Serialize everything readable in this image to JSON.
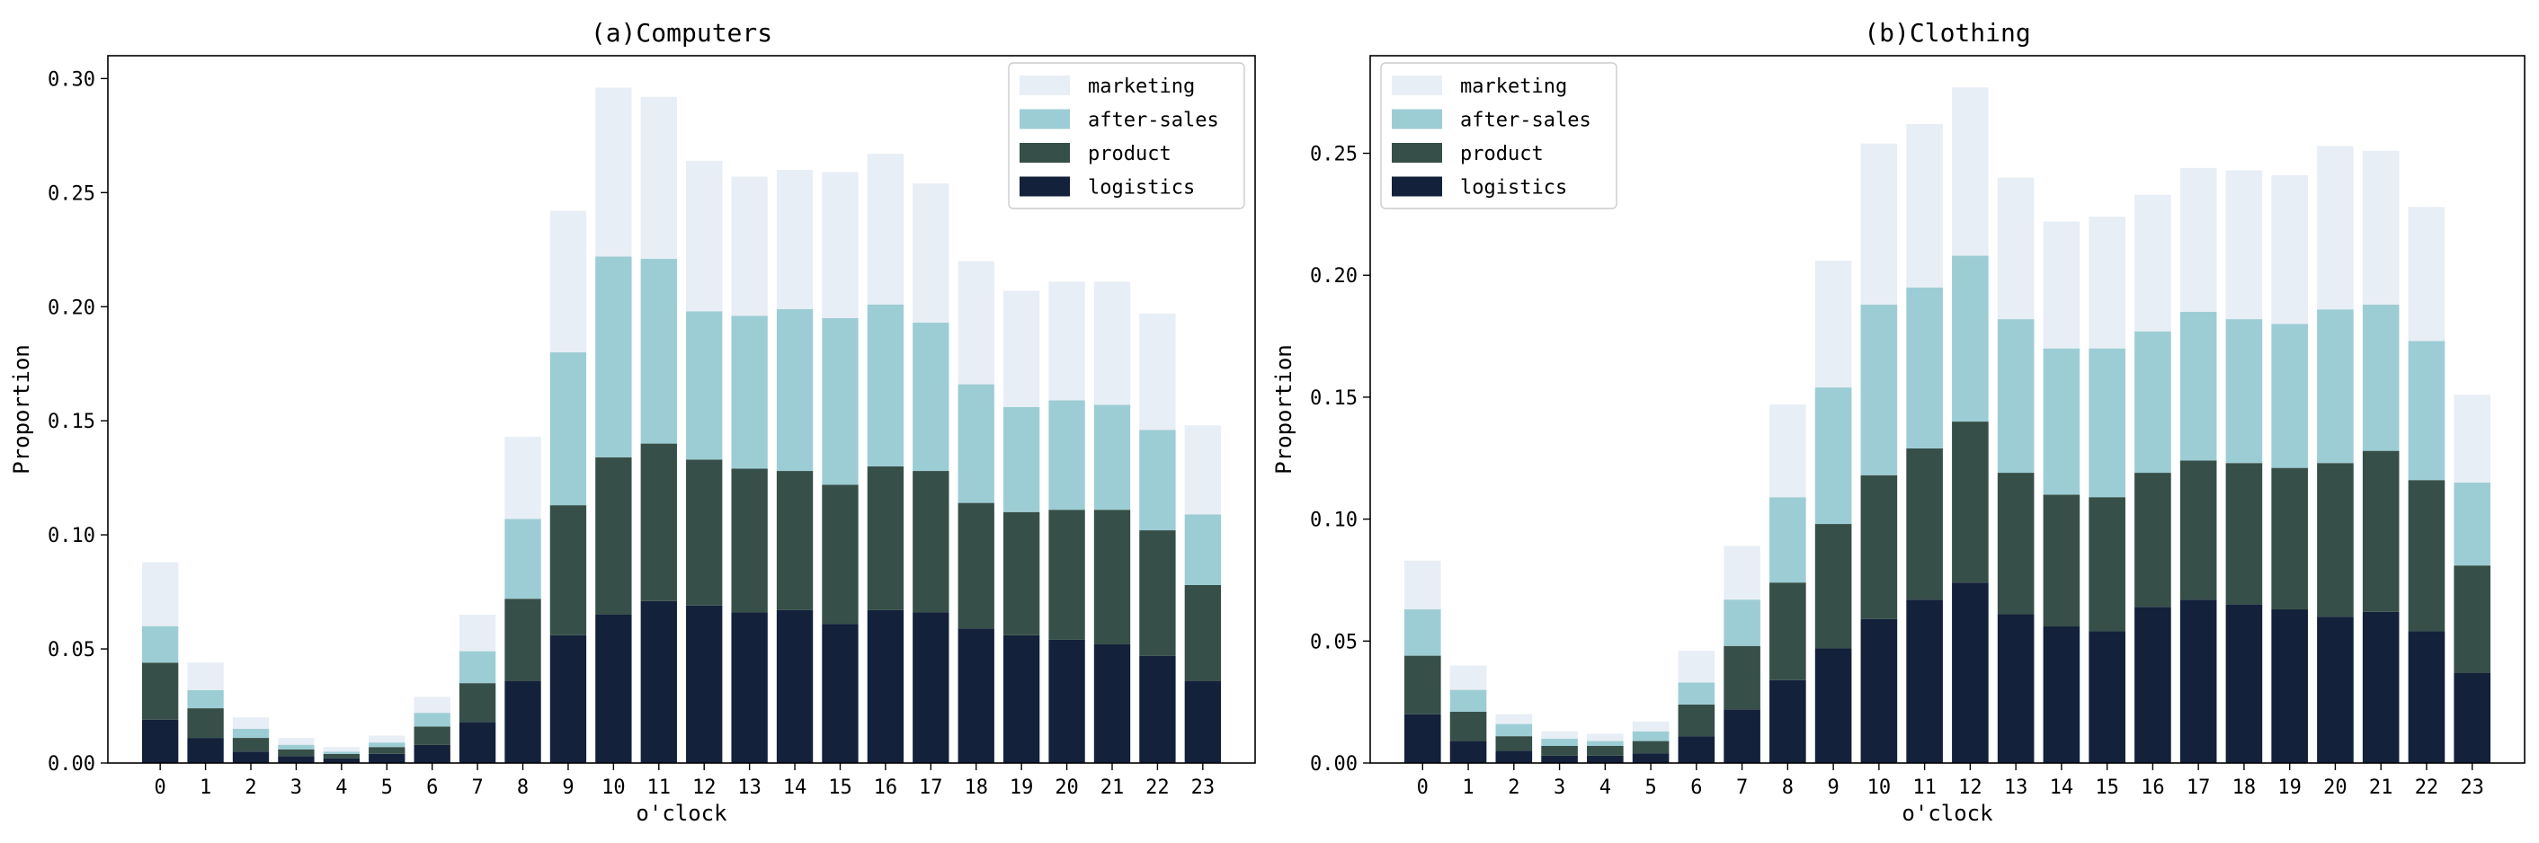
{
  "chart_data": [
    {
      "type": "bar",
      "stacked": true,
      "title": "(a)Computers",
      "xlabel": "o'clock",
      "ylabel": "Proportion",
      "ylim": [
        0,
        0.31
      ],
      "yticks": [
        "0.00",
        "0.05",
        "0.10",
        "0.15",
        "0.20",
        "0.25",
        "0.30"
      ],
      "categories": [
        "0",
        "1",
        "2",
        "3",
        "4",
        "5",
        "6",
        "7",
        "8",
        "9",
        "10",
        "11",
        "12",
        "13",
        "14",
        "15",
        "16",
        "17",
        "18",
        "19",
        "20",
        "21",
        "22",
        "23"
      ],
      "legend_position": "top-right",
      "series": [
        {
          "name": "logistics",
          "color": "#13213a",
          "values": [
            0.019,
            0.011,
            0.005,
            0.003,
            0.002,
            0.004,
            0.008,
            0.018,
            0.036,
            0.056,
            0.065,
            0.071,
            0.069,
            0.066,
            0.067,
            0.061,
            0.067,
            0.066,
            0.059,
            0.056,
            0.054,
            0.052,
            0.047,
            0.036
          ]
        },
        {
          "name": "product",
          "color": "#374f49",
          "values": [
            0.025,
            0.013,
            0.006,
            0.003,
            0.002,
            0.003,
            0.008,
            0.017,
            0.036,
            0.057,
            0.069,
            0.069,
            0.064,
            0.063,
            0.061,
            0.061,
            0.063,
            0.062,
            0.055,
            0.054,
            0.057,
            0.059,
            0.055,
            0.042
          ]
        },
        {
          "name": "after-sales",
          "color": "#9dcdd4",
          "values": [
            0.016,
            0.008,
            0.004,
            0.002,
            0.001,
            0.002,
            0.006,
            0.014,
            0.035,
            0.067,
            0.088,
            0.081,
            0.065,
            0.067,
            0.071,
            0.073,
            0.071,
            0.065,
            0.052,
            0.046,
            0.048,
            0.046,
            0.044,
            0.031
          ]
        },
        {
          "name": "marketing",
          "color": "#e8eef5",
          "values": [
            0.028,
            0.012,
            0.005,
            0.003,
            0.002,
            0.003,
            0.007,
            0.016,
            0.036,
            0.062,
            0.074,
            0.071,
            0.066,
            0.061,
            0.061,
            0.064,
            0.066,
            0.061,
            0.054,
            0.051,
            0.052,
            0.054,
            0.051,
            0.039
          ]
        }
      ]
    },
    {
      "type": "bar",
      "stacked": true,
      "title": "(b)Clothing",
      "xlabel": "o'clock",
      "ylabel": "Proportion",
      "ylim": [
        0,
        0.29
      ],
      "yticks": [
        "0.00",
        "0.05",
        "0.10",
        "0.15",
        "0.20",
        "0.25"
      ],
      "categories": [
        "0",
        "1",
        "2",
        "3",
        "4",
        "5",
        "6",
        "7",
        "8",
        "9",
        "10",
        "11",
        "12",
        "13",
        "14",
        "15",
        "16",
        "17",
        "18",
        "19",
        "20",
        "21",
        "22",
        "23"
      ],
      "legend_position": "top-left",
      "series": [
        {
          "name": "logistics",
          "color": "#13213a",
          "values": [
            0.02,
            0.009,
            0.005,
            0.003,
            0.003,
            0.004,
            0.011,
            0.022,
            0.034,
            0.047,
            0.059,
            0.067,
            0.074,
            0.061,
            0.056,
            0.054,
            0.064,
            0.067,
            0.065,
            0.063,
            0.06,
            0.062,
            0.054,
            0.037
          ]
        },
        {
          "name": "product",
          "color": "#374f49",
          "values": [
            0.024,
            0.012,
            0.006,
            0.004,
            0.004,
            0.005,
            0.013,
            0.026,
            0.04,
            0.051,
            0.059,
            0.062,
            0.066,
            0.058,
            0.054,
            0.055,
            0.055,
            0.057,
            0.058,
            0.058,
            0.063,
            0.066,
            0.062,
            0.044
          ]
        },
        {
          "name": "after-sales",
          "color": "#9dcdd4",
          "values": [
            0.019,
            0.009,
            0.005,
            0.003,
            0.002,
            0.004,
            0.009,
            0.019,
            0.035,
            0.056,
            0.07,
            0.066,
            0.068,
            0.063,
            0.06,
            0.061,
            0.058,
            0.061,
            0.059,
            0.059,
            0.063,
            0.06,
            0.057,
            0.034
          ]
        },
        {
          "name": "marketing",
          "color": "#e8eef5",
          "values": [
            0.02,
            0.01,
            0.004,
            0.003,
            0.003,
            0.004,
            0.013,
            0.022,
            0.038,
            0.052,
            0.066,
            0.067,
            0.069,
            0.058,
            0.052,
            0.054,
            0.056,
            0.059,
            0.061,
            0.061,
            0.067,
            0.063,
            0.055,
            0.036
          ]
        }
      ]
    }
  ]
}
